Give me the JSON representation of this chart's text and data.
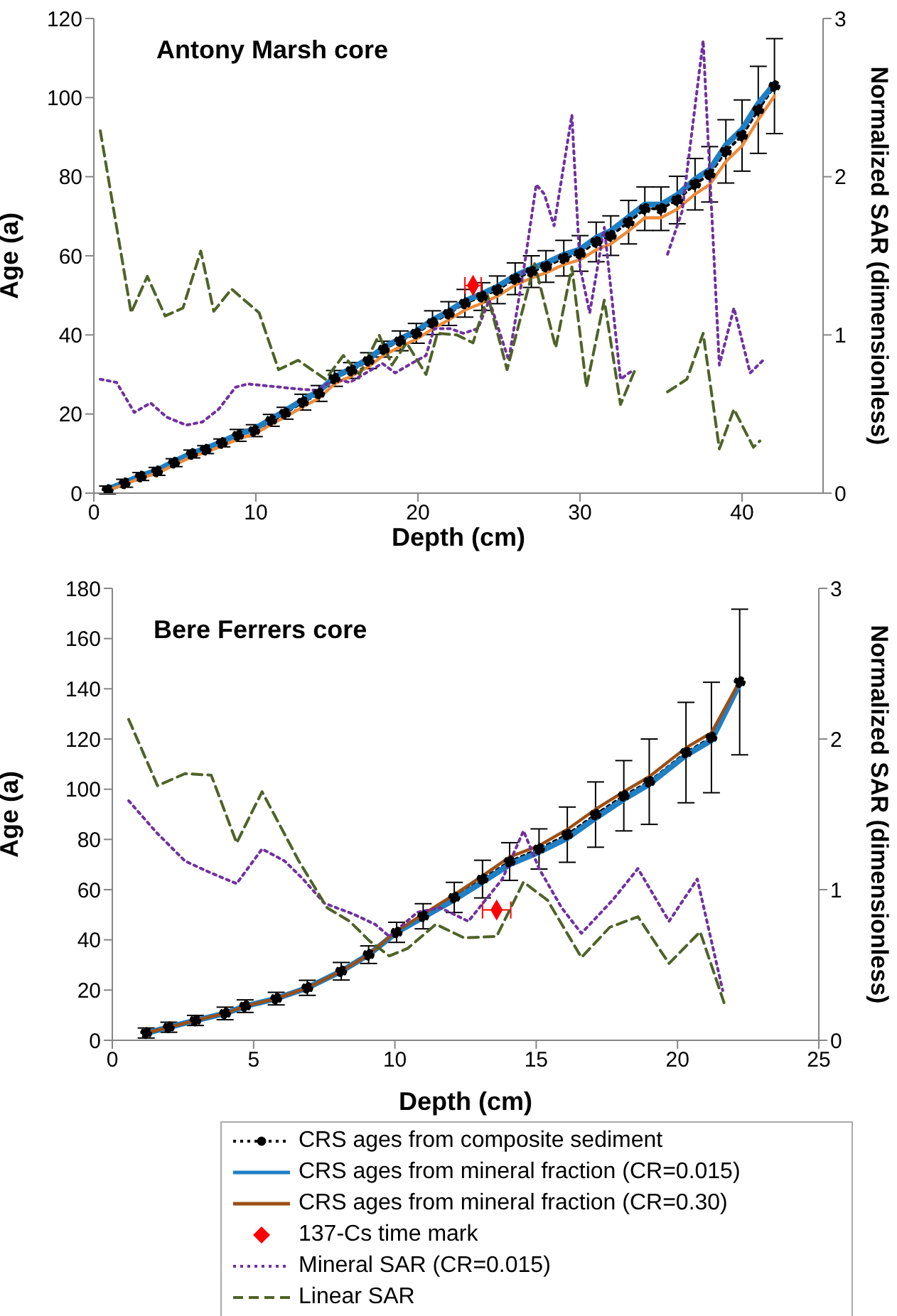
{
  "chart_data": [
    {
      "type": "line",
      "title": "Antony Marsh core",
      "xlabel": "Depth (cm)",
      "ylabel": "Age (a)",
      "y2label": "Normalized SAR (dimensionless)",
      "xlim": [
        0,
        45
      ],
      "xticks": [
        0,
        10,
        20,
        30,
        40
      ],
      "ylim": [
        0,
        120
      ],
      "yticks": [
        0,
        20,
        40,
        60,
        80,
        100,
        120
      ],
      "y2lim": [
        0,
        3
      ],
      "y2ticks": [
        0,
        1,
        2,
        3
      ],
      "series": [
        {
          "type": "line",
          "color": "#000000",
          "line_style": "dotted",
          "marker": "circle",
          "x": [
            0.85,
            1.9,
            2.9,
            3.9,
            4.95,
            6.05,
            6.9,
            7.9,
            8.9,
            9.9,
            10.95,
            11.8,
            12.9,
            13.9,
            14.85,
            15.9,
            16.95,
            17.9,
            18.9,
            19.9,
            20.9,
            21.9,
            22.9,
            23.95,
            24.9,
            26,
            27,
            27.9,
            29,
            30,
            31,
            31.9,
            33,
            34,
            35,
            36,
            37.1,
            38,
            39,
            40,
            41,
            42
          ],
          "values": [
            0.8,
            2.5,
            4.2,
            5.5,
            7.7,
            9.9,
            11,
            12.7,
            14.6,
            15.8,
            18.4,
            20.2,
            23,
            25.2,
            29,
            31,
            33.5,
            36.4,
            38.5,
            40.4,
            43.1,
            45.4,
            48,
            49.7,
            51.4,
            54.2,
            56,
            57.3,
            59.4,
            60.6,
            63.5,
            65.1,
            68.5,
            71.9,
            71.9,
            74.1,
            78.1,
            80.6,
            86.4,
            90.4,
            96.9,
            102.9
          ],
          "errors": [
            1,
            1,
            1,
            1,
            1,
            1,
            1,
            1,
            1.5,
            1.5,
            1.5,
            1.5,
            2,
            2,
            2,
            2,
            2,
            2,
            2.5,
            2.5,
            3,
            3,
            3.5,
            3.5,
            3.5,
            4,
            4,
            4,
            4.5,
            4.5,
            5,
            5,
            5.5,
            5.5,
            5.5,
            6,
            6.5,
            7,
            8,
            9,
            11,
            12
          ]
        },
        {
          "type": "line",
          "color": "#1f7fc4",
          "line_style": "solid",
          "marker": "none",
          "x": [
            0.85,
            1.9,
            2.9,
            3.9,
            4.95,
            6.05,
            6.9,
            7.9,
            8.9,
            9.9,
            10.95,
            11.8,
            12.9,
            13.9,
            14.85,
            15.9,
            16.95,
            17.9,
            18.9,
            19.9,
            20.9,
            21.9,
            22.9,
            23.95,
            24.9,
            26,
            27,
            27.9,
            29,
            30,
            31,
            31.9,
            33,
            34,
            35,
            36,
            37.1,
            38,
            39,
            40,
            41,
            42
          ],
          "values": [
            1,
            2.7,
            4.4,
            5.8,
            8,
            10.1,
            11.3,
            13,
            14.9,
            16.2,
            18.8,
            20.8,
            23.6,
            25.8,
            29.4,
            31.5,
            34,
            36.9,
            39,
            41,
            43.8,
            46,
            48.6,
            50.4,
            52.2,
            55,
            56.8,
            58.2,
            60.3,
            61.6,
            64.6,
            66.3,
            69.8,
            73,
            73,
            75.4,
            79.4,
            81.8,
            88,
            92,
            98.5,
            103.5
          ]
        },
        {
          "type": "line",
          "color": "#ed8b3a",
          "line_style": "solid",
          "marker": "none",
          "x": [
            0.85,
            1.9,
            2.9,
            3.9,
            4.95,
            6.05,
            6.9,
            7.9,
            8.9,
            9.9,
            10.95,
            11.8,
            12.9,
            13.9,
            14.85,
            15.9,
            16.95,
            17.9,
            18.9,
            19.9,
            20.9,
            21.9,
            22.9,
            23.95,
            24.9,
            26,
            27,
            27.9,
            29,
            30,
            31,
            31.9,
            33,
            34,
            35,
            36,
            37.1,
            38,
            39,
            40,
            41,
            42
          ],
          "values": [
            0.6,
            2.2,
            3.8,
            5,
            7.1,
            9.2,
            10.3,
            11.9,
            13.7,
            14.9,
            17.4,
            19.2,
            21.8,
            24,
            27.6,
            29.6,
            32,
            34.9,
            37,
            38.9,
            41.5,
            43.8,
            46.3,
            48,
            49.8,
            52.6,
            54.4,
            55.7,
            57.8,
            59,
            61.5,
            63,
            66.3,
            69.6,
            69.6,
            71.8,
            75.6,
            78,
            83.8,
            87.8,
            94.4,
            100.4
          ]
        },
        {
          "type": "scatter",
          "color": "#ff0000",
          "marker": "diamond",
          "x": [
            23.4
          ],
          "values": [
            52.5
          ],
          "xerrors": [
            0.5
          ]
        },
        {
          "type": "line",
          "color": "#7030a0",
          "line_style": "dotted",
          "marker": "none",
          "axis": "y2",
          "x": [
            0.4,
            1.4,
            2.5,
            3.5,
            4.5,
            5.7,
            6.7,
            7.7,
            8.75,
            9.5,
            10.5,
            11.5,
            12.4,
            13.7,
            14.9,
            15.8,
            16.8,
            17.8,
            18.6,
            19.6,
            20.5,
            21,
            22,
            22.8,
            23.7,
            24.4,
            25.6,
            26.6,
            27.3,
            27.8,
            28.4,
            29.5,
            30,
            30.6,
            31.5,
            32.5,
            33.3,
            34.4,
            35.4,
            36.3,
            37.6,
            38.6,
            39.5,
            40.5,
            41.3
          ],
          "values": [
            0.72,
            0.7,
            0.51,
            0.57,
            0.48,
            0.43,
            0.45,
            0.53,
            0.67,
            0.69,
            0.68,
            0.67,
            0.66,
            0.65,
            0.72,
            0.7,
            0.76,
            0.82,
            0.76,
            0.82,
            0.87,
            1.04,
            1.04,
            1.01,
            1.04,
            1.22,
            0.84,
            1.46,
            1.95,
            1.89,
            1.69,
            2.39,
            1.43,
            1.14,
            1.68,
            0.72,
            0.78,
            null,
            1.51,
            1.78,
            2.86,
            0.81,
            1.17,
            0.76,
            0.84
          ]
        },
        {
          "type": "line",
          "color": "#4f6228",
          "line_style": "dashed",
          "marker": "none",
          "axis": "y2",
          "x": [
            0.4,
            2.3,
            3.3,
            4.4,
            5.5,
            6.6,
            7.4,
            8.5,
            10.2,
            11.4,
            12.6,
            14.3,
            15.4,
            16.4,
            17.6,
            18.4,
            19.3,
            20.5,
            21.2,
            22.4,
            23.4,
            24.3,
            25.5,
            27.2,
            28.5,
            29.5,
            30.4,
            31.5,
            32.5,
            33.4,
            34.4,
            35.4,
            36.6,
            37.6,
            38.6,
            39.5,
            40.7,
            41.1
          ],
          "values": [
            2.29,
            1.14,
            1.37,
            1.12,
            1.17,
            1.53,
            1.15,
            1.29,
            1.14,
            0.78,
            0.84,
            0.72,
            0.87,
            0.75,
            1.0,
            0.81,
            0.95,
            0.75,
            1.01,
            1.0,
            0.95,
            1.25,
            0.78,
            1.45,
            0.92,
            1.43,
            0.67,
            1.22,
            0.56,
            0.78,
            null,
            0.64,
            0.72,
            1.01,
            0.28,
            0.53,
            0.29,
            0.33
          ]
        }
      ]
    },
    {
      "type": "line",
      "title": "Bere Ferrers core",
      "xlabel": "Depth (cm)",
      "ylabel": "Age (a)",
      "y2label": "Normalized SAR (dimensionless)",
      "legend": "bottom",
      "xlim": [
        0,
        25
      ],
      "xticks": [
        0,
        5,
        10,
        15,
        20,
        25
      ],
      "ylim": [
        0,
        180
      ],
      "yticks": [
        0,
        20,
        40,
        60,
        80,
        100,
        120,
        140,
        160,
        180
      ],
      "y2lim": [
        0,
        3
      ],
      "y2ticks": [
        0,
        1,
        2,
        3
      ],
      "series": [
        {
          "type": "line",
          "name": "CRS ages from composite sediment",
          "color": "#000000",
          "line_style": "dotted",
          "marker": "circle",
          "x": [
            1.2,
            2.0,
            2.94,
            3.99,
            4.7,
            5.8,
            6.9,
            8.1,
            9.07,
            10.06,
            11.0,
            12.1,
            13.1,
            14.06,
            15.1,
            16.1,
            17.1,
            18.1,
            19.0,
            20.3,
            21.2,
            22.2
          ],
          "values": [
            2.9,
            5.2,
            7.9,
            10.7,
            13.6,
            16.6,
            20.9,
            27.5,
            34.1,
            43,
            49.4,
            56.9,
            64.2,
            71.2,
            76.2,
            81.9,
            89.9,
            97.4,
            103,
            114.6,
            120.6,
            142.7
          ],
          "errors": [
            2,
            2,
            2,
            2.5,
            2.5,
            2.5,
            3,
            3.5,
            3.5,
            4,
            5,
            6,
            7.5,
            7.5,
            8,
            11,
            13,
            14,
            17,
            20,
            22,
            29
          ]
        },
        {
          "type": "line",
          "name": "CRS ages from mineral fraction (CR=0.015)",
          "color": "#1f7fc4",
          "line_style": "solid",
          "marker": "none",
          "x": [
            1.2,
            2.0,
            2.94,
            3.99,
            4.7,
            5.8,
            6.9,
            8.1,
            9.07,
            10.06,
            11.0,
            12.1,
            13.1,
            14.06,
            15.1,
            16.1,
            17.1,
            18.1,
            19.0,
            20.3,
            21.2,
            22.2
          ],
          "values": [
            2.9,
            5.2,
            7.9,
            10.7,
            13.6,
            16.6,
            20.9,
            27.5,
            34.1,
            43,
            49,
            56,
            63,
            70,
            75,
            80.5,
            88.5,
            96,
            102,
            113.5,
            119.5,
            142
          ]
        },
        {
          "type": "line",
          "name": "CRS ages from mineral fraction (CR=0.30)",
          "color": "#9c4f14",
          "line_style": "solid",
          "marker": "none",
          "x": [
            1.2,
            2.0,
            2.94,
            3.99,
            4.7,
            5.8,
            6.9,
            8.1,
            9.07,
            10.06,
            11.0,
            12.1,
            13.1,
            14.06,
            15.1,
            16.1,
            17.1,
            18.1,
            19.0,
            20.3,
            21.2,
            22.2
          ],
          "values": [
            2.9,
            5.2,
            7.9,
            10.7,
            13.6,
            16.6,
            20.9,
            27.5,
            34.1,
            43.5,
            50.2,
            58,
            65.5,
            73,
            77.5,
            84,
            92,
            99,
            105,
            116.5,
            122.5,
            143
          ]
        },
        {
          "type": "scatter",
          "name": "137-Cs time mark",
          "color": "#ff0000",
          "marker": "diamond",
          "x": [
            13.6
          ],
          "values": [
            51.9
          ],
          "xerrors": [
            0.5
          ]
        },
        {
          "type": "line",
          "name": "Mineral SAR (CR=0.015)",
          "color": "#7030a0",
          "line_style": "dotted",
          "marker": "none",
          "axis": "y2",
          "x": [
            0.58,
            1.56,
            2.57,
            3.5,
            4.4,
            5.3,
            6.1,
            6.75,
            7.5,
            8.5,
            9.3,
            9.8,
            10.8,
            11.6,
            12.6,
            13.8,
            14.55,
            15.1,
            15.9,
            16.6,
            17.7,
            18.6,
            19.7,
            20.7,
            21.6
          ],
          "values": [
            1.59,
            1.38,
            1.19,
            1.11,
            1.04,
            1.27,
            1.19,
            1.07,
            0.91,
            0.84,
            0.77,
            0.69,
            0.85,
            0.88,
            0.79,
            1.07,
            1.39,
            1.14,
            0.88,
            0.71,
            0.93,
            1.14,
            0.79,
            1.07,
            0.33
          ]
        },
        {
          "type": "line",
          "name": "Linear SAR",
          "color": "#4f6228",
          "line_style": "dashed",
          "marker": "none",
          "axis": "y2",
          "x": [
            0.58,
            1.6,
            2.57,
            3.5,
            4.4,
            5.3,
            6.6,
            7.6,
            8.4,
            9.1,
            9.8,
            10.45,
            11.45,
            12.45,
            13.6,
            14.55,
            15.4,
            16.6,
            17.6,
            18.6,
            19.7,
            20.8,
            21.7
          ],
          "values": [
            2.13,
            1.69,
            1.77,
            1.76,
            1.31,
            1.65,
            1.19,
            0.88,
            0.79,
            0.66,
            0.56,
            0.61,
            0.77,
            0.68,
            0.69,
            1.05,
            0.93,
            0.55,
            0.75,
            0.82,
            0.51,
            0.72,
            0.22
          ]
        }
      ]
    }
  ]
}
